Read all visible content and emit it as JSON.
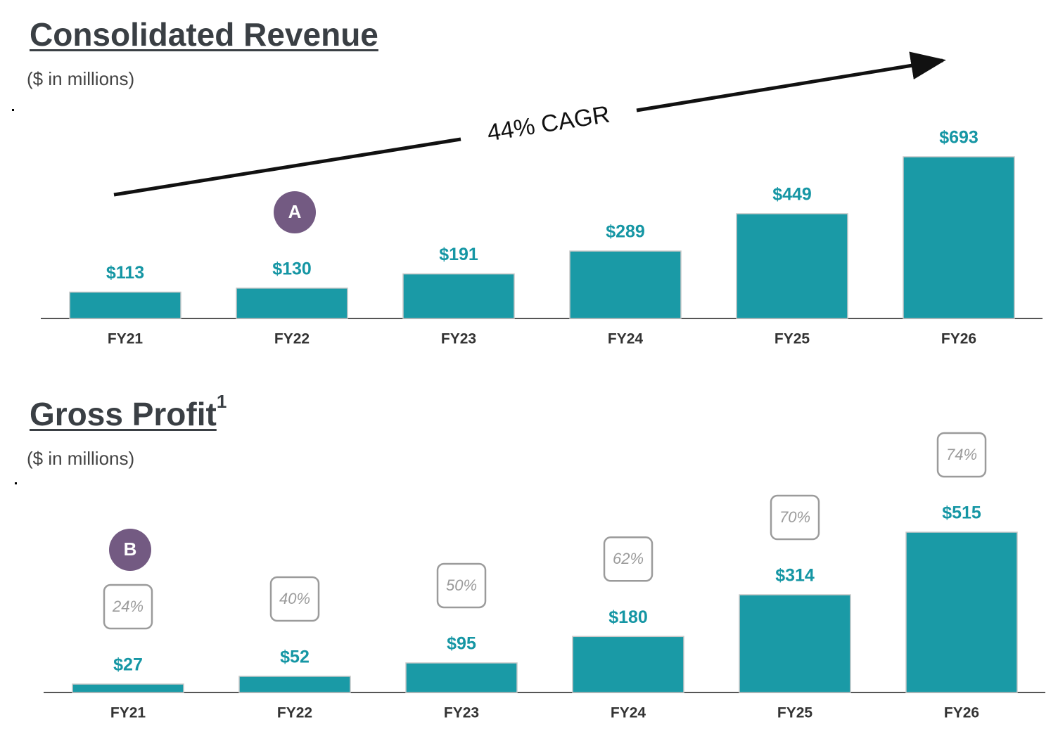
{
  "charts": {
    "revenue": {
      "title": "Consolidated Revenue",
      "subtitle": "($ in millions)",
      "cagr_label": "44% CAGR",
      "badge": "A"
    },
    "gross_profit": {
      "title": "Gross Profit",
      "title_sup": "1",
      "subtitle": "($ in millions)",
      "badge": "B"
    }
  },
  "colors": {
    "bar": "#1a9aa6",
    "value_label": "#1596a4",
    "badge": "#735a82",
    "margin_box": "#9b9b9b",
    "title": "#3a3f44"
  },
  "chart_data": [
    {
      "type": "bar",
      "title": "Consolidated Revenue",
      "subtitle": "($ in millions)",
      "categories": [
        "FY21",
        "FY22",
        "FY23",
        "FY24",
        "FY25",
        "FY26"
      ],
      "values": [
        113,
        130,
        191,
        289,
        449,
        693
      ],
      "value_labels": [
        "$113",
        "$130",
        "$191",
        "$289",
        "$449",
        "$693"
      ],
      "annotations": [
        "44% CAGR",
        "A"
      ],
      "ylim": [
        0,
        693
      ],
      "grid": false,
      "legend": "none"
    },
    {
      "type": "bar",
      "title": "Gross Profit",
      "subtitle": "($ in millions)",
      "categories": [
        "FY21",
        "FY22",
        "FY23",
        "FY24",
        "FY25",
        "FY26"
      ],
      "values": [
        27,
        52,
        95,
        180,
        314,
        515
      ],
      "value_labels": [
        "$27",
        "$52",
        "$95",
        "$180",
        "$314",
        "$515"
      ],
      "margin_labels": [
        "24%",
        "40%",
        "50%",
        "62%",
        "70%",
        "74%"
      ],
      "annotations": [
        "B"
      ],
      "ylim": [
        0,
        515
      ],
      "grid": false,
      "legend": "none"
    }
  ]
}
